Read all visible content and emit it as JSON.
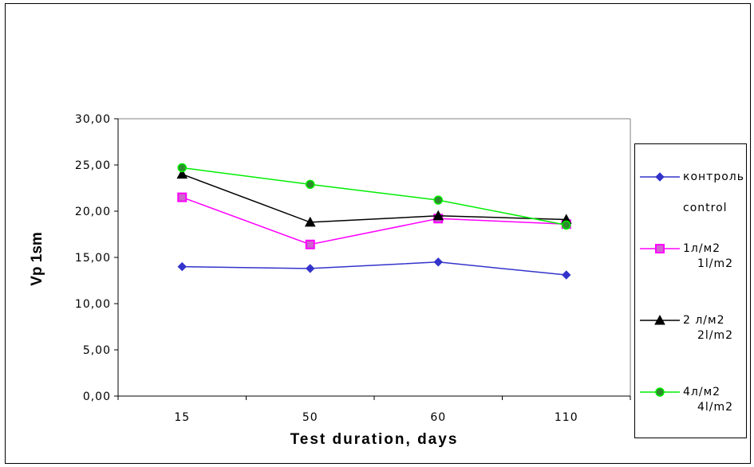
{
  "chart_data": {
    "type": "line",
    "title": "",
    "xlabel": "Test duration, days",
    "ylabel": "Vp 1sm",
    "categories": [
      "15",
      "50",
      "60",
      "110"
    ],
    "ylim": [
      0,
      30
    ],
    "yticks": [
      "0,00",
      "5,00",
      "10,00",
      "15,00",
      "20,00",
      "25,00",
      "30,00"
    ],
    "grid": false,
    "legend_position": "right",
    "series": [
      {
        "name": "контроль",
        "name2": "control",
        "color": "#3333cc",
        "marker": "diamond",
        "values": [
          14.0,
          13.8,
          14.5,
          13.1
        ]
      },
      {
        "name": "1л/м2",
        "name2": "1l/m2",
        "color": "#ff00ff",
        "marker": "square",
        "values": [
          21.5,
          16.4,
          19.2,
          18.6
        ]
      },
      {
        "name": "2 л/м2",
        "name2": "2l/m2",
        "color": "#000000",
        "marker": "triangle",
        "values": [
          24.0,
          18.8,
          19.5,
          19.1
        ]
      },
      {
        "name": "4л/м2",
        "name2": "4l/m2",
        "color": "#00ee00",
        "marker": "circle",
        "values": [
          24.7,
          22.9,
          21.2,
          18.5
        ]
      }
    ]
  }
}
